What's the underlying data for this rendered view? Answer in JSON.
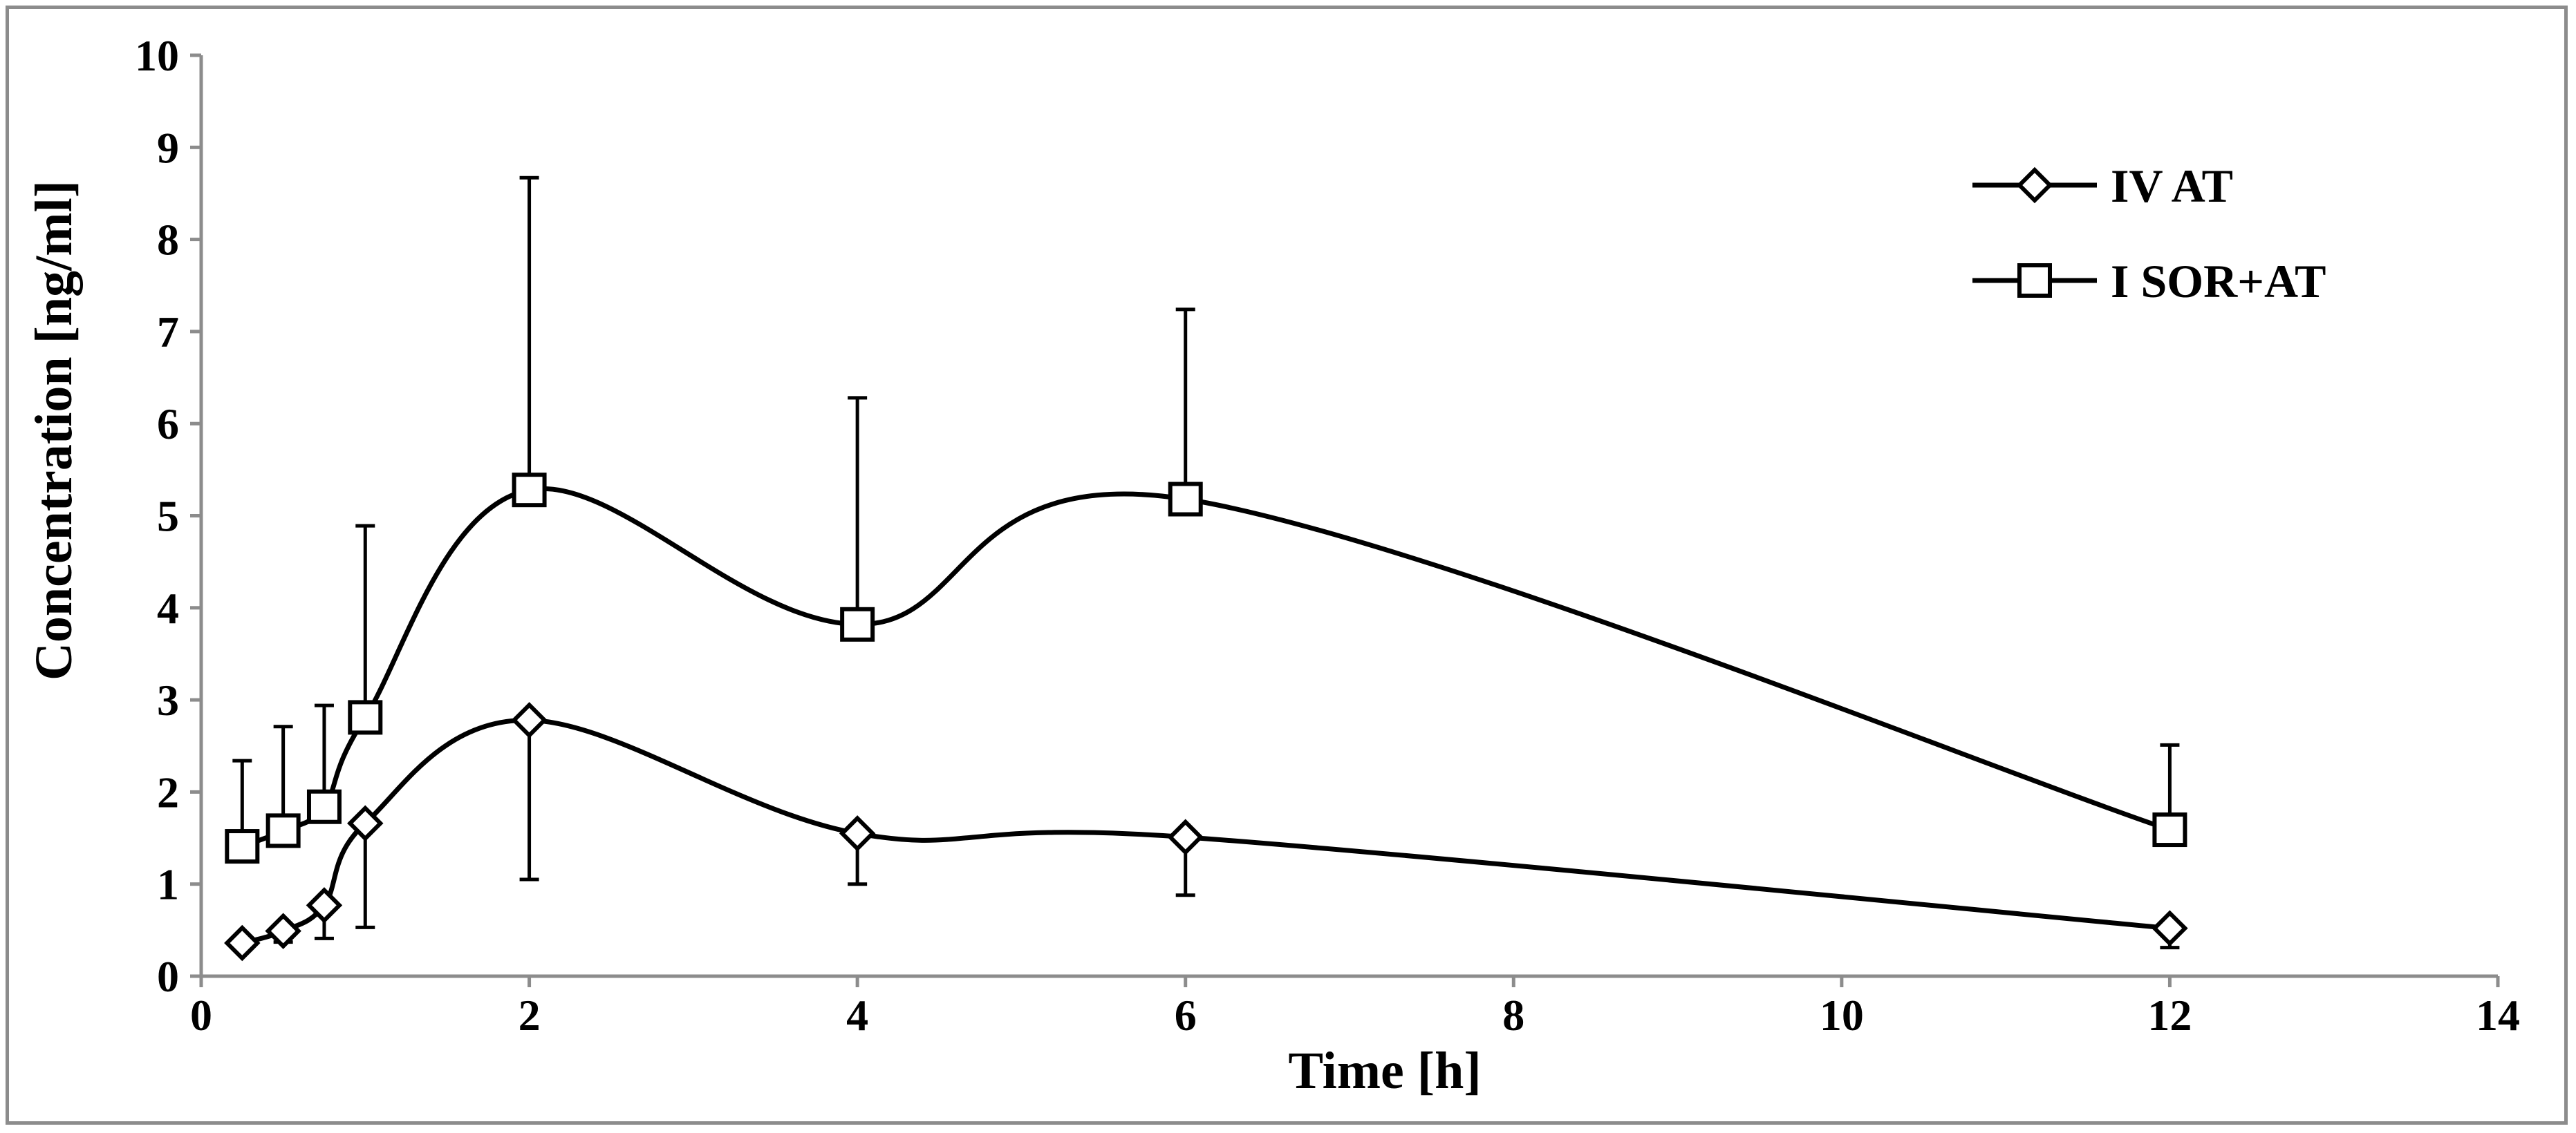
{
  "chart_data": {
    "type": "line",
    "title": "",
    "xlabel": "Time [h]",
    "ylabel": "Concentration [ng/ml]",
    "xlim": [
      0,
      14
    ],
    "ylim": [
      0,
      10
    ],
    "xticks": [
      0,
      2,
      4,
      6,
      8,
      10,
      12,
      14
    ],
    "yticks": [
      0,
      1,
      2,
      3,
      4,
      5,
      6,
      7,
      8,
      9,
      10
    ],
    "grid": false,
    "legend_position": "top-right",
    "series": [
      {
        "name": "IV AT",
        "marker": "diamond",
        "color": "#000000",
        "x": [
          0.25,
          0.5,
          0.75,
          1,
          2,
          4,
          6,
          12
        ],
        "y": [
          0.36,
          0.49,
          0.77,
          1.66,
          2.78,
          1.55,
          1.51,
          0.52
        ],
        "error_plus": [
          0,
          0,
          0,
          0,
          0,
          0,
          0,
          0
        ],
        "error_minus": [
          0,
          0.12,
          0.36,
          1.13,
          1.73,
          0.55,
          0.63,
          0.21
        ]
      },
      {
        "name": "I SOR+AT",
        "marker": "square",
        "color": "#000000",
        "x": [
          0.25,
          0.5,
          0.75,
          1,
          2,
          4,
          6,
          12
        ],
        "y": [
          1.41,
          1.58,
          1.84,
          2.81,
          5.28,
          3.82,
          5.18,
          1.59
        ],
        "error_plus": [
          0.93,
          1.13,
          1.1,
          2.08,
          3.39,
          2.46,
          2.06,
          0.92
        ],
        "error_minus": [
          0,
          0,
          0,
          0,
          0,
          0,
          0,
          0
        ]
      }
    ]
  }
}
